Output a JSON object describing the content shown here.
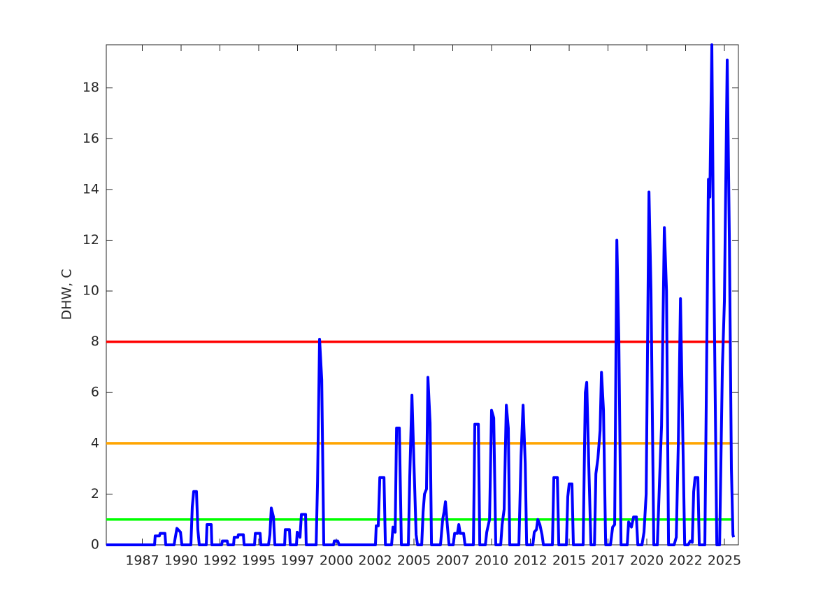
{
  "chart_data": {
    "type": "line",
    "ylabel": "DHW, C",
    "xlim": [
      1985.18,
      2025.9
    ],
    "ylim": [
      0,
      19.7
    ],
    "yticks": [
      0,
      2,
      4,
      6,
      8,
      10,
      12,
      14,
      16,
      18
    ],
    "xticks": [
      {
        "value": 1987.5,
        "label": "1987"
      },
      {
        "value": 1990,
        "label": "1990"
      },
      {
        "value": 1992.5,
        "label": "1992"
      },
      {
        "value": 1995,
        "label": "1995"
      },
      {
        "value": 1997.5,
        "label": "1997"
      },
      {
        "value": 2000,
        "label": "2000"
      },
      {
        "value": 2002.5,
        "label": "2002"
      },
      {
        "value": 2005,
        "label": "2005"
      },
      {
        "value": 2007.5,
        "label": "2007"
      },
      {
        "value": 2010,
        "label": "2010"
      },
      {
        "value": 2012.5,
        "label": "2012"
      },
      {
        "value": 2015,
        "label": "2015"
      },
      {
        "value": 2017.5,
        "label": "2017"
      },
      {
        "value": 2020,
        "label": "2020"
      },
      {
        "value": 2022.5,
        "label": "2022"
      },
      {
        "value": 2025,
        "label": "2025"
      }
    ],
    "grid": false,
    "series": [
      {
        "color": "#0000ff",
        "x": [
          1985.18,
          1988.29,
          1988.33,
          1988.6,
          1988.65,
          1988.96,
          1989.01,
          1989.55,
          1989.6,
          1989.73,
          1989.96,
          1990.05,
          1990.63,
          1990.72,
          1990.81,
          1990.99,
          1991.08,
          1991.17,
          1991.62,
          1991.67,
          1991.94,
          1991.98,
          1992.61,
          1992.66,
          1992.97,
          1993.02,
          1993.38,
          1993.42,
          1993.65,
          1993.69,
          1994.01,
          1994.06,
          1994.73,
          1994.78,
          1995.09,
          1995.14,
          1995.63,
          1995.72,
          1995.81,
          1995.95,
          1996.04,
          1996.67,
          1996.71,
          1996.98,
          1997.03,
          1997.43,
          1997.48,
          1997.66,
          1997.75,
          1998.02,
          1998.06,
          1998.7,
          1998.79,
          1998.92,
          1999.06,
          1999.19,
          1999.82,
          1999.87,
          2000.09,
          2000.18,
          2002.52,
          2002.57,
          2002.7,
          2002.8,
          2003.07,
          2003.16,
          2003.56,
          2003.65,
          2003.79,
          2003.88,
          2004.06,
          2004.19,
          2004.64,
          2004.73,
          2004.87,
          2005.0,
          2005.14,
          2005.23,
          2005.5,
          2005.59,
          2005.68,
          2005.81,
          2005.9,
          2006.04,
          2006.13,
          2006.71,
          2006.85,
          2006.94,
          2007.03,
          2007.16,
          2007.26,
          2007.53,
          2007.62,
          2007.8,
          2007.89,
          2007.98,
          2008.2,
          2008.29,
          2008.83,
          2008.92,
          2009.15,
          2009.24,
          2009.6,
          2009.69,
          2009.87,
          2010.0,
          2010.14,
          2010.27,
          2010.59,
          2010.68,
          2010.81,
          2010.95,
          2011.08,
          2011.17,
          2011.76,
          2011.9,
          2012.03,
          2012.17,
          2012.26,
          2012.66,
          2012.75,
          2012.89,
          2012.98,
          2013.11,
          2013.25,
          2013.34,
          2013.92,
          2014.01,
          2014.24,
          2014.33,
          2014.82,
          2014.91,
          2015.0,
          2015.18,
          2015.27,
          2015.9,
          2016.04,
          2016.13,
          2016.26,
          2016.4,
          2016.63,
          2016.72,
          2016.85,
          2016.99,
          2017.08,
          2017.21,
          2017.35,
          2017.66,
          2017.8,
          2017.93,
          2018.07,
          2018.2,
          2018.34,
          2018.74,
          2018.83,
          2019.01,
          2019.15,
          2019.33,
          2019.42,
          2019.69,
          2019.82,
          2019.96,
          2020.14,
          2020.27,
          2020.45,
          2020.68,
          2020.82,
          2020.95,
          2021.13,
          2021.27,
          2021.4,
          2021.76,
          2021.9,
          2022.03,
          2022.17,
          2022.3,
          2022.44,
          2022.66,
          2022.8,
          2022.93,
          2023.02,
          2023.11,
          2023.29,
          2023.38,
          2023.74,
          2023.97,
          2024.06,
          2024.19,
          2024.28,
          2024.51,
          2024.69,
          2024.87,
          2025.0,
          2025.18,
          2025.32,
          2025.45,
          2025.55,
          2025.59
        ],
        "values": [
          0,
          0,
          0.35,
          0.35,
          0.45,
          0.45,
          0,
          0,
          0.2,
          0.65,
          0.5,
          0,
          0,
          1.5,
          2.1,
          2.1,
          0.6,
          0,
          0,
          0.8,
          0.8,
          0,
          0,
          0.15,
          0.15,
          0,
          0,
          0.3,
          0.3,
          0.4,
          0.4,
          0,
          0,
          0.45,
          0.45,
          0,
          0,
          0.4,
          1.45,
          1.1,
          0,
          0,
          0.6,
          0.6,
          0,
          0,
          0.5,
          0.3,
          1.2,
          1.2,
          0,
          0,
          2.5,
          8.1,
          6.5,
          0,
          0,
          0.15,
          0.15,
          0,
          0,
          0.75,
          0.75,
          2.65,
          2.65,
          0,
          0,
          0.7,
          0.5,
          4.6,
          4.6,
          0,
          0,
          2.7,
          5.9,
          3.2,
          0.4,
          0,
          0,
          1.3,
          2.0,
          2.2,
          6.6,
          4.8,
          0,
          0,
          1.0,
          1.3,
          1.7,
          0.7,
          0,
          0,
          0.45,
          0.45,
          0.8,
          0.45,
          0.45,
          0,
          0,
          4.75,
          4.75,
          0,
          0,
          0.5,
          1.0,
          5.3,
          5.0,
          0,
          0,
          0.8,
          1.4,
          5.5,
          4.6,
          0,
          0,
          3.5,
          5.5,
          3.2,
          0,
          0,
          0.5,
          0.6,
          1.0,
          0.8,
          0.4,
          0,
          0,
          2.65,
          2.65,
          0,
          0,
          1.9,
          2.4,
          2.4,
          0,
          0,
          6.0,
          6.4,
          3.2,
          0,
          0,
          2.8,
          3.4,
          4.5,
          6.8,
          5.3,
          0,
          0,
          0.7,
          0.8,
          12.0,
          8.0,
          0,
          0,
          0.9,
          0.7,
          1.1,
          1.1,
          0,
          0,
          0.5,
          2.0,
          13.9,
          10.0,
          0,
          0,
          2.5,
          4.7,
          12.5,
          10.0,
          0,
          0,
          0.3,
          4.0,
          9.7,
          5.0,
          0,
          0,
          0.15,
          0.1,
          2.1,
          2.65,
          2.65,
          0,
          0,
          14.4,
          13.7,
          19.7,
          13.0,
          0,
          0,
          7.0,
          9.6,
          19.1,
          12.0,
          3.0,
          0.4,
          0.3
        ]
      },
      {
        "color": "#00ff00",
        "x": [
          1985.18,
          2025.45
        ],
        "values": [
          1,
          1
        ]
      },
      {
        "color": "#ffa500",
        "x": [
          1985.18,
          2025.45
        ],
        "values": [
          4,
          4
        ]
      },
      {
        "color": "#ff0000",
        "x": [
          1985.18,
          2025.45
        ],
        "values": [
          8,
          8
        ]
      }
    ]
  }
}
